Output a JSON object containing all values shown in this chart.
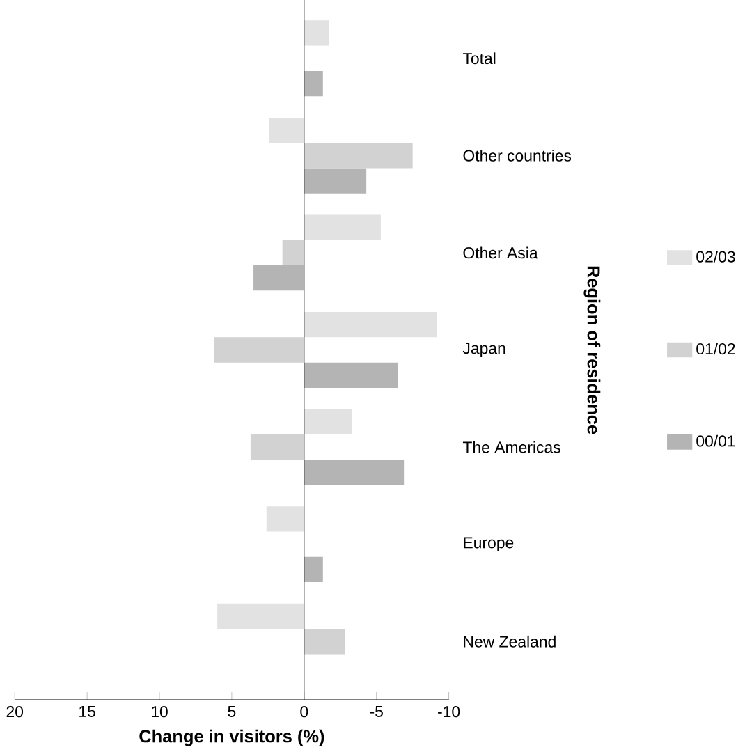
{
  "chart_data": {
    "type": "bar",
    "orientation": "horizontal",
    "xlabel": "Change in visitors (%)",
    "ylabel": "Region of residence",
    "categories": [
      "Total",
      "Other countries",
      "Other Asia",
      "Japan",
      "The Americas",
      "Europe",
      "New Zealand"
    ],
    "series": [
      {
        "name": "00/01",
        "color": "#b4b4b4",
        "values": [
          -1.3,
          -4.3,
          3.5,
          -6.5,
          -6.9,
          -1.3,
          0
        ]
      },
      {
        "name": "01/02",
        "color": "#d2d2d2",
        "values": [
          0,
          -7.5,
          1.5,
          6.2,
          3.7,
          0,
          -2.8
        ]
      },
      {
        "name": "02/03",
        "color": "#e2e2e2",
        "values": [
          -1.7,
          2.4,
          -5.3,
          -9.2,
          -3.3,
          2.6,
          6.0
        ]
      }
    ],
    "xlim": [
      20,
      -10
    ],
    "xticks": [
      20,
      15,
      10,
      5,
      0,
      -5,
      -10
    ],
    "legend": "right"
  }
}
